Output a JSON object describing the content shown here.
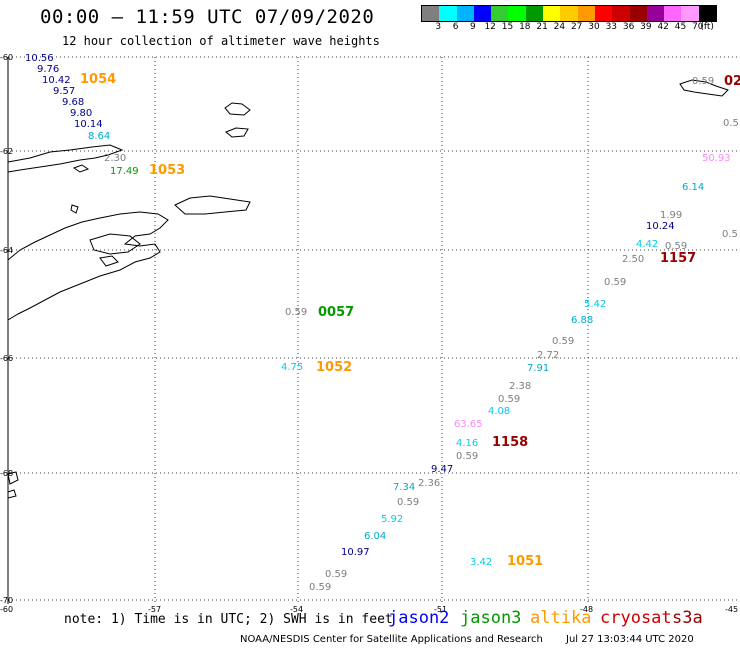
{
  "header": {
    "title": "00:00 – 11:59 UTC 07/09/2020",
    "subtitle": "12 hour collection of altimeter wave heights"
  },
  "scale": {
    "colors": [
      "#7f7f7f",
      "#00ffff",
      "#00b4ff",
      "#0000ff",
      "#33cc33",
      "#00ff00",
      "#009900",
      "#ffff00",
      "#ffcc00",
      "#ff9900",
      "#ff0000",
      "#cc0000",
      "#990000",
      "#990099",
      "#ff66ff",
      "#ff99ff",
      "#000000"
    ],
    "labels": [
      "3",
      "6",
      "9",
      "12",
      "15",
      "18",
      "21",
      "24",
      "27",
      "30",
      "33",
      "36",
      "39",
      "42",
      "45",
      "70",
      "(ft)"
    ]
  },
  "axes": {
    "lat_labels": [
      "-60",
      "-62",
      "-64",
      "-66",
      "-68",
      "-70"
    ],
    "lon_labels": [
      "-60",
      "-57",
      "-54",
      "-51",
      "-48",
      "-45"
    ]
  },
  "observations": [
    {
      "text": "10.56",
      "color": "#00008b"
    },
    {
      "text": "9.76",
      "color": "#00008b"
    },
    {
      "text": "10.42",
      "color": "#00008b"
    },
    {
      "text": "1054",
      "color": "#ff9900"
    },
    {
      "text": "9.57",
      "color": "#00008b"
    },
    {
      "text": "9.68",
      "color": "#00008b"
    },
    {
      "text": "9.80",
      "color": "#00008b"
    },
    {
      "text": "10.14",
      "color": "#00008b"
    },
    {
      "text": "8.64",
      "color": "#00aacc"
    },
    {
      "text": "2.30",
      "color": "#7f7f7f"
    },
    {
      "text": "17.49",
      "color": "#009900"
    },
    {
      "text": "1053",
      "color": "#ff9900"
    },
    {
      "text": "0.59",
      "color": "#7f7f7f"
    },
    {
      "text": "0057",
      "color": "#009900"
    },
    {
      "text": "4.75",
      "color": "#00ccee"
    },
    {
      "text": "1052",
      "color": "#ff9900"
    },
    {
      "text": "0.59",
      "color": "#7f7f7f"
    },
    {
      "text": "02",
      "color": "#990000"
    },
    {
      "text": "0.5",
      "color": "#7f7f7f"
    },
    {
      "text": "50.93",
      "color": "#ff88ff"
    },
    {
      "text": "6.14",
      "color": "#00aacc"
    },
    {
      "text": "1.99",
      "color": "#7f7f7f"
    },
    {
      "text": "10.24",
      "color": "#00008b"
    },
    {
      "text": "0.5",
      "color": "#7f7f7f"
    },
    {
      "text": "4.42",
      "color": "#00ccee"
    },
    {
      "text": "0.59",
      "color": "#7f7f7f"
    },
    {
      "text": "2.50",
      "color": "#7f7f7f"
    },
    {
      "text": "1157",
      "color": "#990000"
    },
    {
      "text": "0.59",
      "color": "#7f7f7f"
    },
    {
      "text": "5.42",
      "color": "#00ccee"
    },
    {
      "text": "6.88",
      "color": "#00aacc"
    },
    {
      "text": "0.59",
      "color": "#7f7f7f"
    },
    {
      "text": "2.72",
      "color": "#7f7f7f"
    },
    {
      "text": "7.91",
      "color": "#00aacc"
    },
    {
      "text": "2.38",
      "color": "#7f7f7f"
    },
    {
      "text": "0.59",
      "color": "#7f7f7f"
    },
    {
      "text": "4.08",
      "color": "#00ccee"
    },
    {
      "text": "63.65",
      "color": "#ff88ff"
    },
    {
      "text": "4.16",
      "color": "#00ccee"
    },
    {
      "text": "1158",
      "color": "#990000"
    },
    {
      "text": "0.59",
      "color": "#7f7f7f"
    },
    {
      "text": "9.47",
      "color": "#00008b"
    },
    {
      "text": "2.36",
      "color": "#7f7f7f"
    },
    {
      "text": "7.34",
      "color": "#00aacc"
    },
    {
      "text": "0.59",
      "color": "#7f7f7f"
    },
    {
      "text": "5.92",
      "color": "#00ccee"
    },
    {
      "text": "6.04",
      "color": "#00aacc"
    },
    {
      "text": "10.97",
      "color": "#00008b"
    },
    {
      "text": "0.59",
      "color": "#7f7f7f"
    },
    {
      "text": "0.59",
      "color": "#7f7f7f"
    },
    {
      "text": "3.42",
      "color": "#00ccee"
    },
    {
      "text": "1051",
      "color": "#ff9900"
    }
  ],
  "footer": {
    "note": "note: 1) Time is in UTC; 2) SWH is in feet",
    "satellites": [
      {
        "name": "jason2",
        "color": "#0000ff"
      },
      {
        "name": "jason3",
        "color": "#009900"
      },
      {
        "name": "altika",
        "color": "#ff9900"
      },
      {
        "name": "cryosat",
        "color": "#cc0000"
      },
      {
        "name": "s3a",
        "color": "#990000"
      }
    ],
    "credit": "NOAA/NESDIS Center for Satellite Applications and Research",
    "timestamp": "Jul 27 13:03:44 UTC 2020"
  }
}
